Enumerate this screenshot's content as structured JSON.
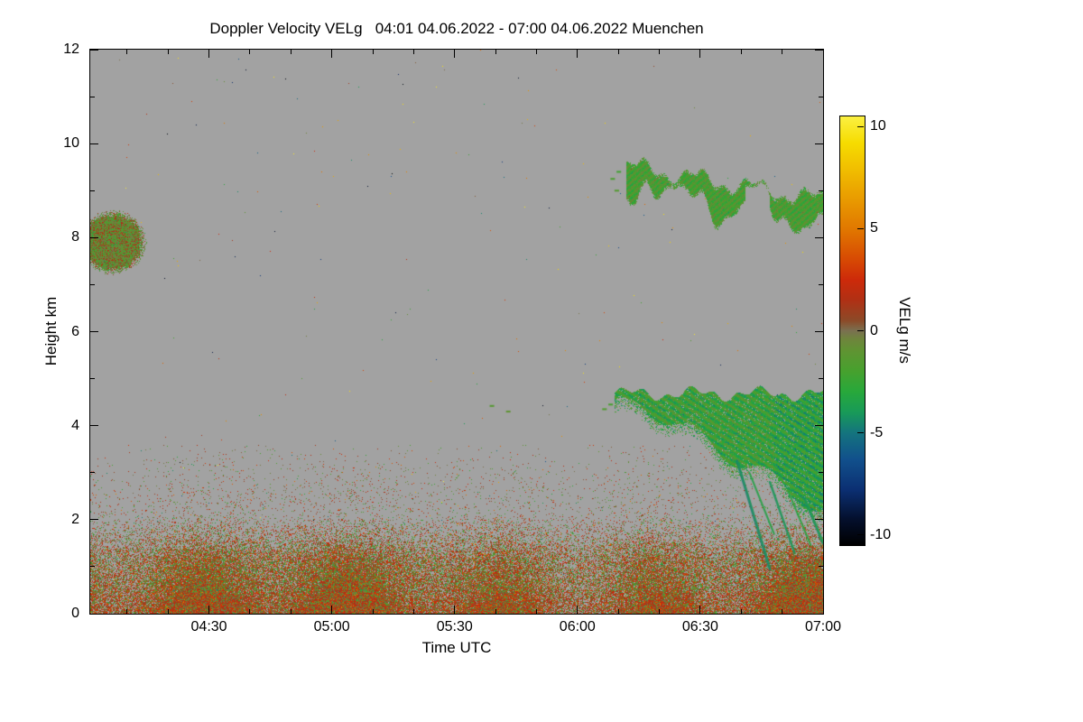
{
  "chart_data": {
    "type": "heatmap",
    "title": "Doppler Velocity VELg",
    "date_range": "04:01 04.06.2022 - 07:00 04.06.2022",
    "station": "Muenchen",
    "title_full": "Doppler Velocity VELg   04:01 04.06.2022 - 07:00 04.06.2022 Muenchen",
    "xlabel": "Time UTC",
    "ylabel": "Height km",
    "x_start_utc": "04:01",
    "x_end_utc": "07:00",
    "x_start_min": 241,
    "x_end_min": 420,
    "xticks": [
      {
        "label": "04:30",
        "minutes": 270
      },
      {
        "label": "05:00",
        "minutes": 300
      },
      {
        "label": "05:30",
        "minutes": 330
      },
      {
        "label": "06:00",
        "minutes": 360
      },
      {
        "label": "06:30",
        "minutes": 390
      },
      {
        "label": "07:00",
        "minutes": 420
      }
    ],
    "x_minor_step_min": 10,
    "ylim": [
      0,
      12
    ],
    "yticks": [
      {
        "label": "0",
        "km": 0
      },
      {
        "label": "2",
        "km": 2
      },
      {
        "label": "4",
        "km": 4
      },
      {
        "label": "6",
        "km": 6
      },
      {
        "label": "8",
        "km": 8
      },
      {
        "label": "10",
        "km": 10
      },
      {
        "label": "12",
        "km": 12
      }
    ],
    "y_minor_km": [
      1,
      3,
      5,
      7,
      9,
      11
    ],
    "background_no_signal_color": "#a2a2a2",
    "colorbar": {
      "label": "VELg m/s",
      "ticks": [
        {
          "label": "10",
          "value": 10
        },
        {
          "label": "5",
          "value": 5
        },
        {
          "label": "0",
          "value": 0
        },
        {
          "label": "-5",
          "value": -5
        },
        {
          "label": "-10",
          "value": -10
        }
      ],
      "vmin": -10.5,
      "vmax": 10.5,
      "stops": [
        [
          -10.5,
          "#000000"
        ],
        [
          -9.2,
          "#04102e"
        ],
        [
          -7.8,
          "#0b2f72"
        ],
        [
          -6.3,
          "#11508c"
        ],
        [
          -5.0,
          "#14747e"
        ],
        [
          -4.0,
          "#189a58"
        ],
        [
          -3.0,
          "#27a83b"
        ],
        [
          -2.0,
          "#46a12e"
        ],
        [
          -1.0,
          "#5f9432"
        ],
        [
          -0.4,
          "#6f843d"
        ],
        [
          0.0,
          "#7a7050"
        ],
        [
          0.5,
          "#8c4a28"
        ],
        [
          1.5,
          "#b03014"
        ],
        [
          2.5,
          "#cd2a0a"
        ],
        [
          3.5,
          "#d74a03"
        ],
        [
          5.0,
          "#e17800"
        ],
        [
          6.5,
          "#e99c00"
        ],
        [
          8.0,
          "#f1c000"
        ],
        [
          9.2,
          "#f6dc00"
        ],
        [
          10.5,
          "#fbf042"
        ]
      ]
    },
    "features": [
      {
        "name": "boundary-layer-echo",
        "time_utc": [
          "04:01",
          "07:00"
        ],
        "height_km": [
          0,
          2.2
        ],
        "velocity_ms": [
          -2.5,
          4
        ],
        "appearance": "dense speckled olive/red/orange layer, sparse speckle up to 3.6 km"
      },
      {
        "name": "left-cloud-patch",
        "time_utc": [
          "04:01",
          "04:14"
        ],
        "height_km": [
          7.3,
          8.5
        ],
        "velocity_ms": [
          -2.5,
          1.5
        ],
        "appearance": "olive-green blob with red flecks at left edge"
      },
      {
        "name": "cirrus-band",
        "time_utc": [
          "06:12",
          "07:00"
        ],
        "height_km": [
          8.3,
          9.7
        ],
        "velocity_ms": [
          -3.5,
          -0.5
        ],
        "appearance": "streaky green band sloping slightly downward, pinched near 06:44"
      },
      {
        "name": "mid-cloud-with-fall-streaks",
        "time_utc": [
          "06:10",
          "07:00"
        ],
        "height_km": [
          0.95,
          4.9
        ],
        "velocity_ms": [
          -5.5,
          -1
        ],
        "appearance": "bright green cloud deepening with teal fall streaks reaching ~1 km near 06:47"
      },
      {
        "name": "speckle-noise",
        "time_utc": [
          "04:01",
          "07:00"
        ],
        "height_km": [
          0,
          12
        ],
        "velocity_ms": [
          -10.5,
          10.5
        ],
        "appearance": "sparse random single-pixel noise over gray background"
      }
    ],
    "render": {
      "seed": 7,
      "speckle_density": 0.00055,
      "boundary_profile": [
        [
          0,
          0.95
        ],
        [
          1.15,
          0.68
        ],
        [
          1.6,
          0.3
        ],
        [
          2.1,
          0.06
        ],
        [
          3.6,
          0.006
        ]
      ],
      "boundary_mean_v": 0.5,
      "boundary_sd_v": 1.9,
      "left_cloud": {
        "t_center": 246.5,
        "h_center": 7.9,
        "t_radius": 7.5,
        "h_radius": 0.62,
        "mean_v": -0.9,
        "sd_v": 1.0,
        "warm_fraction": 0.14
      },
      "cirrus": {
        "t_start": 372,
        "top_start_km": 9.55,
        "top_slope": 0.015,
        "pinch_t": [
          401,
          407
        ],
        "mean_v": -1.9
      },
      "mid_cloud": {
        "t_start": 369,
        "top_km": 4.68,
        "bottom_start_km": 4.45,
        "deepen_from_t": 376,
        "deepen_rate": 0.051,
        "mean_v": -2.6
      },
      "fall_streaks": [
        [
          399,
          3.25,
          407,
          0.95,
          3,
          -4.6
        ],
        [
          402,
          3.0,
          408,
          1.7,
          2,
          -3.6
        ],
        [
          407,
          2.8,
          413,
          1.3,
          2.5,
          -4.2
        ],
        [
          411.5,
          2.6,
          417,
          1.45,
          2,
          -3.3
        ],
        [
          415.5,
          2.45,
          420,
          1.5,
          3,
          -4.3
        ]
      ],
      "specks": [
        [
          339,
          4.42,
          -1.4
        ],
        [
          343,
          4.3,
          -1.0
        ],
        [
          366.5,
          4.35,
          -1.6
        ],
        [
          368,
          4.45,
          -2.0
        ],
        [
          368.5,
          9.25,
          -1.8
        ],
        [
          370,
          9.4,
          -2.2
        ],
        [
          369.5,
          9.0,
          -1.5
        ]
      ]
    }
  }
}
